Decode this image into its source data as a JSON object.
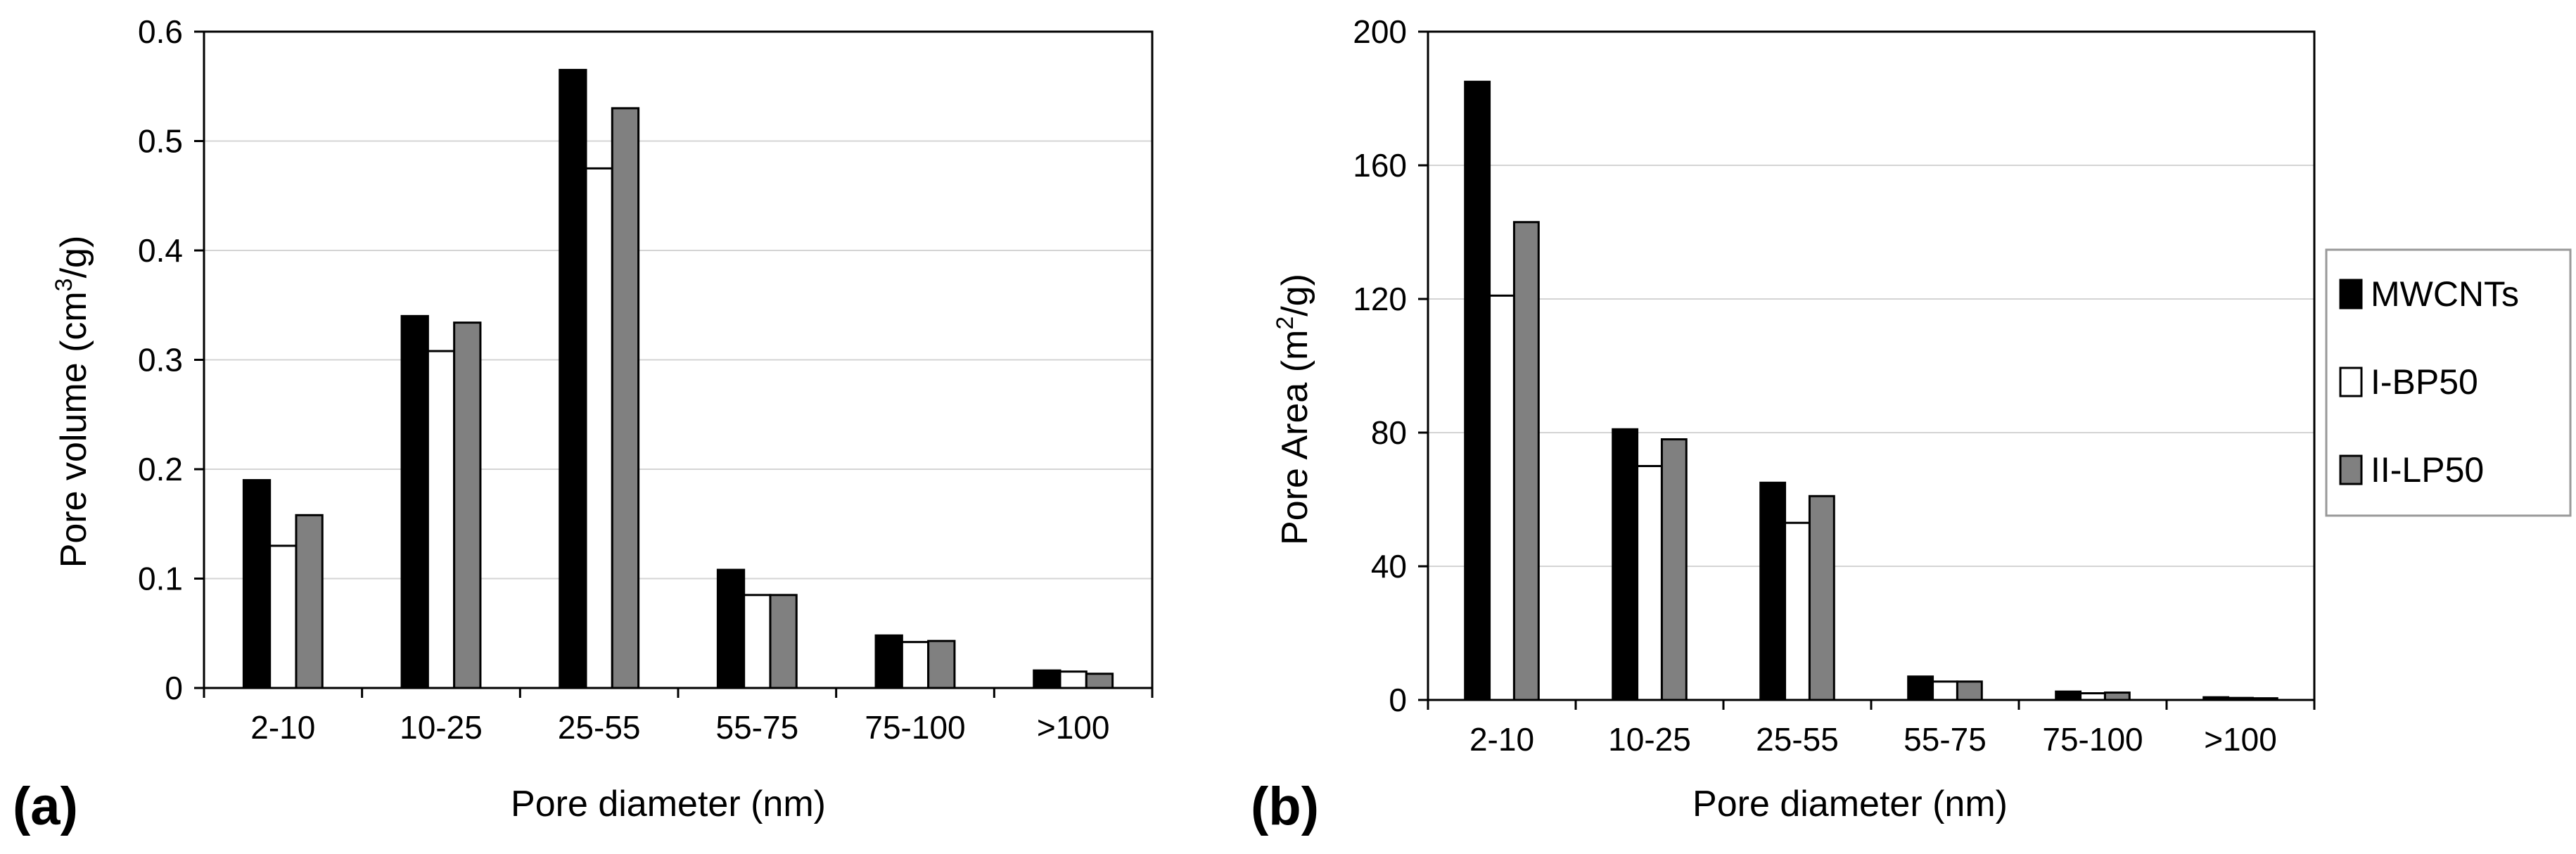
{
  "chart_data": [
    {
      "type": "bar",
      "panel_label": "(a)",
      "title": "",
      "xlabel": "Pore diameter (nm)",
      "ylabel_main": "Pore volume (cm",
      "ylabel_sup": "3",
      "ylabel_tail": "/g)",
      "categories": [
        "2-10",
        "10-25",
        "25-55",
        "55-75",
        "75-100",
        ">100"
      ],
      "ylim": [
        0,
        0.6
      ],
      "yticks": [
        0,
        0.1,
        0.2,
        0.3,
        0.4,
        0.5,
        0.6
      ],
      "ytick_labels": [
        "0",
        "0.1",
        "0.2",
        "0.3",
        "0.4",
        "0.5",
        "0.6"
      ],
      "grid": true,
      "series": [
        {
          "name": "MWCNTs",
          "values": [
            0.19,
            0.34,
            0.565,
            0.108,
            0.048,
            0.016
          ]
        },
        {
          "name": "I-BP50",
          "values": [
            0.13,
            0.308,
            0.475,
            0.085,
            0.042,
            0.015
          ]
        },
        {
          "name": "II-LP50",
          "values": [
            0.158,
            0.334,
            0.53,
            0.085,
            0.043,
            0.013
          ]
        }
      ]
    },
    {
      "type": "bar",
      "panel_label": "(b)",
      "title": "",
      "xlabel": "Pore diameter (nm)",
      "ylabel_main": "Pore Area (m",
      "ylabel_sup": "2",
      "ylabel_tail": "/g)",
      "categories": [
        "2-10",
        "10-25",
        "25-55",
        "55-75",
        "75-100",
        ">100"
      ],
      "ylim": [
        0,
        200
      ],
      "yticks": [
        0,
        40,
        80,
        120,
        160,
        200
      ],
      "ytick_labels": [
        "0",
        "40",
        "80",
        "120",
        "160",
        "200"
      ],
      "grid": true,
      "series": [
        {
          "name": "MWCNTs",
          "values": [
            185,
            81,
            65,
            7,
            2.5,
            0.8
          ]
        },
        {
          "name": "I-BP50",
          "values": [
            121,
            70,
            53,
            5.5,
            2,
            0.6
          ]
        },
        {
          "name": "II-LP50",
          "values": [
            143,
            78,
            61,
            5.5,
            2.2,
            0.5
          ]
        }
      ]
    }
  ],
  "legend": {
    "placement": "right",
    "entries": [
      "MWCNTs",
      "I-BP50",
      "II-LP50"
    ]
  },
  "colors": {
    "MWCNTs": "#000000",
    "I-BP50": "#ffffff",
    "II-LP50": "#808080",
    "grid": "#d4d4d4",
    "axis": "#000000"
  }
}
